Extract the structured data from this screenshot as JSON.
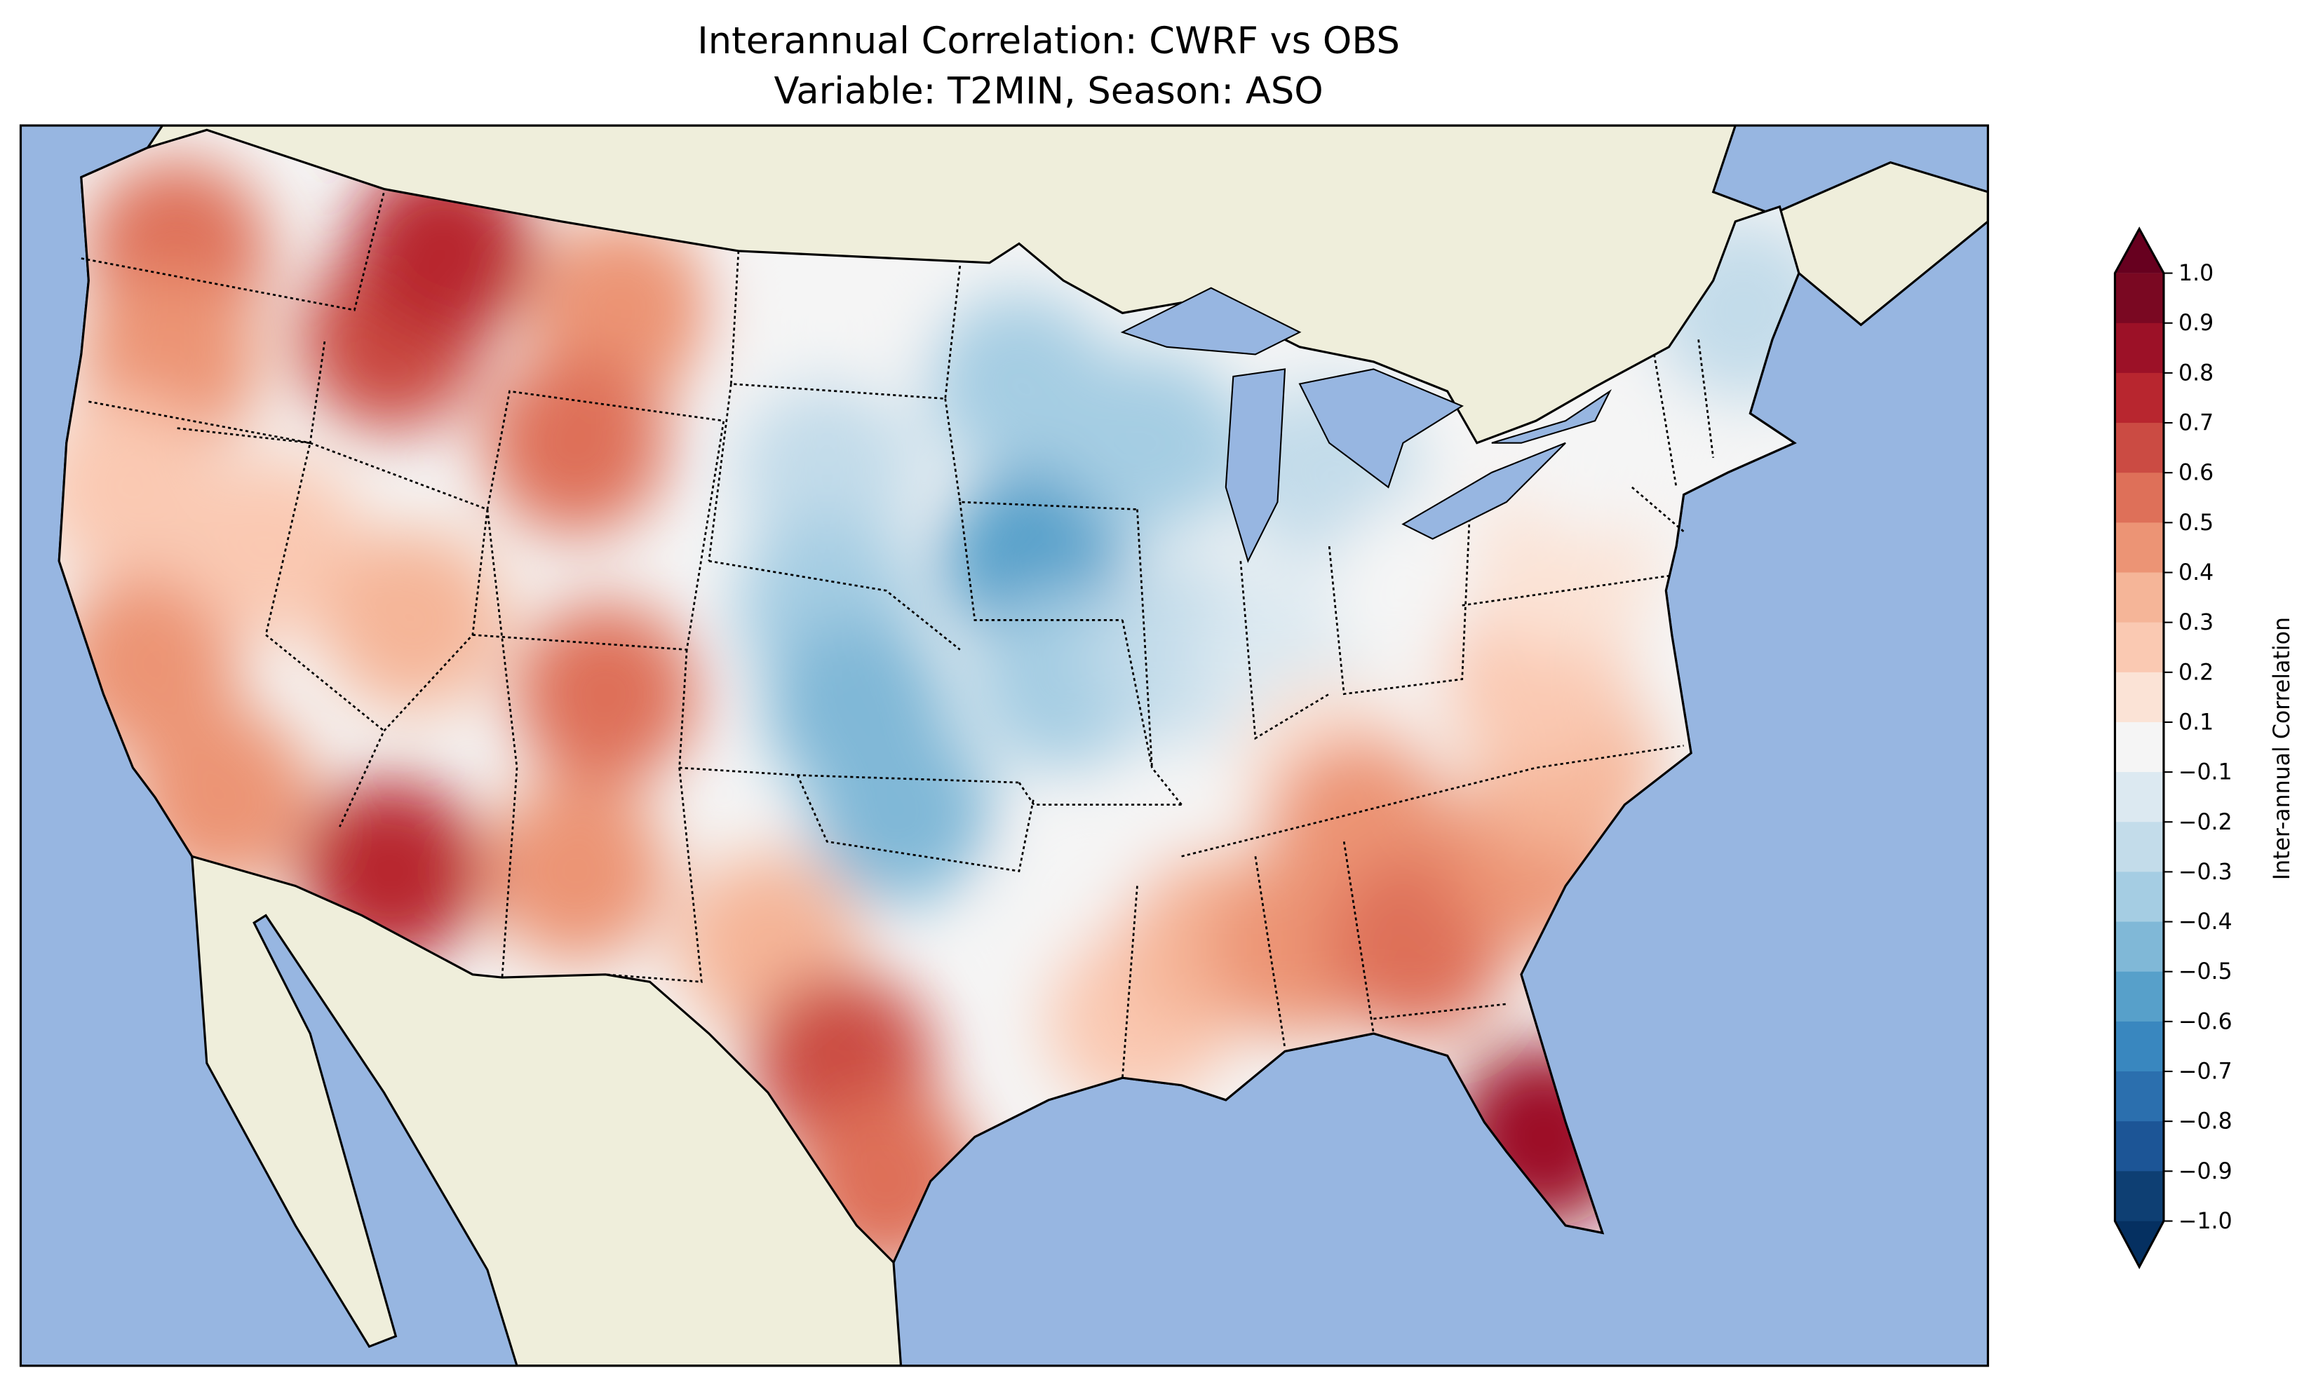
{
  "title": {
    "line1": "Interannual Correlation: CWRF vs OBS",
    "line2": "Variable: T2MIN, Season: ASO"
  },
  "colors": {
    "ocean": "#97b6e1",
    "land": "#efeedb",
    "lakes": "#97b6e1",
    "neutral": "#f5f5f5"
  },
  "chart_data": {
    "type": "heatmap",
    "title": "Interannual Correlation: CWRF vs OBS\nVariable: T2MIN, Season: ASO",
    "colorbar": {
      "label": "Inter-annual Correlation",
      "range": [
        -1.0,
        1.0
      ],
      "extend": "both",
      "ticks": [
        "1.0",
        "0.9",
        "0.8",
        "0.7",
        "0.6",
        "0.5",
        "0.4",
        "0.3",
        "0.2",
        "0.1",
        "−0.1",
        "−0.2",
        "−0.3",
        "−0.4",
        "−0.5",
        "−0.6",
        "−0.7",
        "−0.8",
        "−0.9",
        "−1.0"
      ],
      "band_colors": [
        "#7a0822",
        "#9c1127",
        "#b8262f",
        "#cb4b43",
        "#de7059",
        "#ec9475",
        "#f5b598",
        "#fac9b2",
        "#fbe3d6",
        "#f5f5f5",
        "#dce9f1",
        "#c3dcea",
        "#a5cde3",
        "#80b8d7",
        "#57a0ca",
        "#3987bf",
        "#2b6fae",
        "#1c5596",
        "#0e3f73"
      ],
      "over_color": "#67001f",
      "under_color": "#053061"
    },
    "regions": [
      {
        "region": "Washington",
        "value": 0.5
      },
      {
        "region": "Oregon",
        "value": 0.45
      },
      {
        "region": "Northern California",
        "value": 0.2
      },
      {
        "region": "Central California",
        "value": 0.4
      },
      {
        "region": "Southern California",
        "value": 0.45
      },
      {
        "region": "Nevada",
        "value": 0.2
      },
      {
        "region": "Idaho",
        "value": 0.6
      },
      {
        "region": "Western Montana",
        "value": 0.7
      },
      {
        "region": "Eastern Montana",
        "value": 0.4
      },
      {
        "region": "Wyoming",
        "value": 0.55
      },
      {
        "region": "Utah",
        "value": 0.3
      },
      {
        "region": "Colorado",
        "value": 0.5
      },
      {
        "region": "Arizona",
        "value": 0.7
      },
      {
        "region": "New Mexico",
        "value": 0.45
      },
      {
        "region": "North Dakota",
        "value": -0.1
      },
      {
        "region": "South Dakota",
        "value": -0.3
      },
      {
        "region": "Nebraska",
        "value": -0.4
      },
      {
        "region": "Kansas",
        "value": -0.5
      },
      {
        "region": "Oklahoma",
        "value": -0.5
      },
      {
        "region": "North Texas",
        "value": 0.3
      },
      {
        "region": "Central Texas",
        "value": 0.6
      },
      {
        "region": "South Texas",
        "value": 0.5
      },
      {
        "region": "Minnesota",
        "value": -0.4
      },
      {
        "region": "Iowa",
        "value": -0.6
      },
      {
        "region": "Missouri",
        "value": -0.4
      },
      {
        "region": "Arkansas",
        "value": 0.0
      },
      {
        "region": "Louisiana",
        "value": 0.2
      },
      {
        "region": "Wisconsin",
        "value": -0.4
      },
      {
        "region": "Illinois",
        "value": -0.3
      },
      {
        "region": "Michigan",
        "value": -0.3
      },
      {
        "region": "Indiana",
        "value": -0.2
      },
      {
        "region": "Ohio",
        "value": -0.05
      },
      {
        "region": "Kentucky",
        "value": 0.1
      },
      {
        "region": "Tennessee",
        "value": 0.4
      },
      {
        "region": "Mississippi",
        "value": 0.3
      },
      {
        "region": "Alabama",
        "value": 0.4
      },
      {
        "region": "Georgia",
        "value": 0.5
      },
      {
        "region": "Florida",
        "value": 0.8
      },
      {
        "region": "South Carolina",
        "value": 0.45
      },
      {
        "region": "North Carolina",
        "value": 0.3
      },
      {
        "region": "Virginia",
        "value": 0.2
      },
      {
        "region": "Pennsylvania",
        "value": 0.1
      },
      {
        "region": "New York",
        "value": -0.1
      },
      {
        "region": "New England",
        "value": -0.3
      }
    ]
  }
}
